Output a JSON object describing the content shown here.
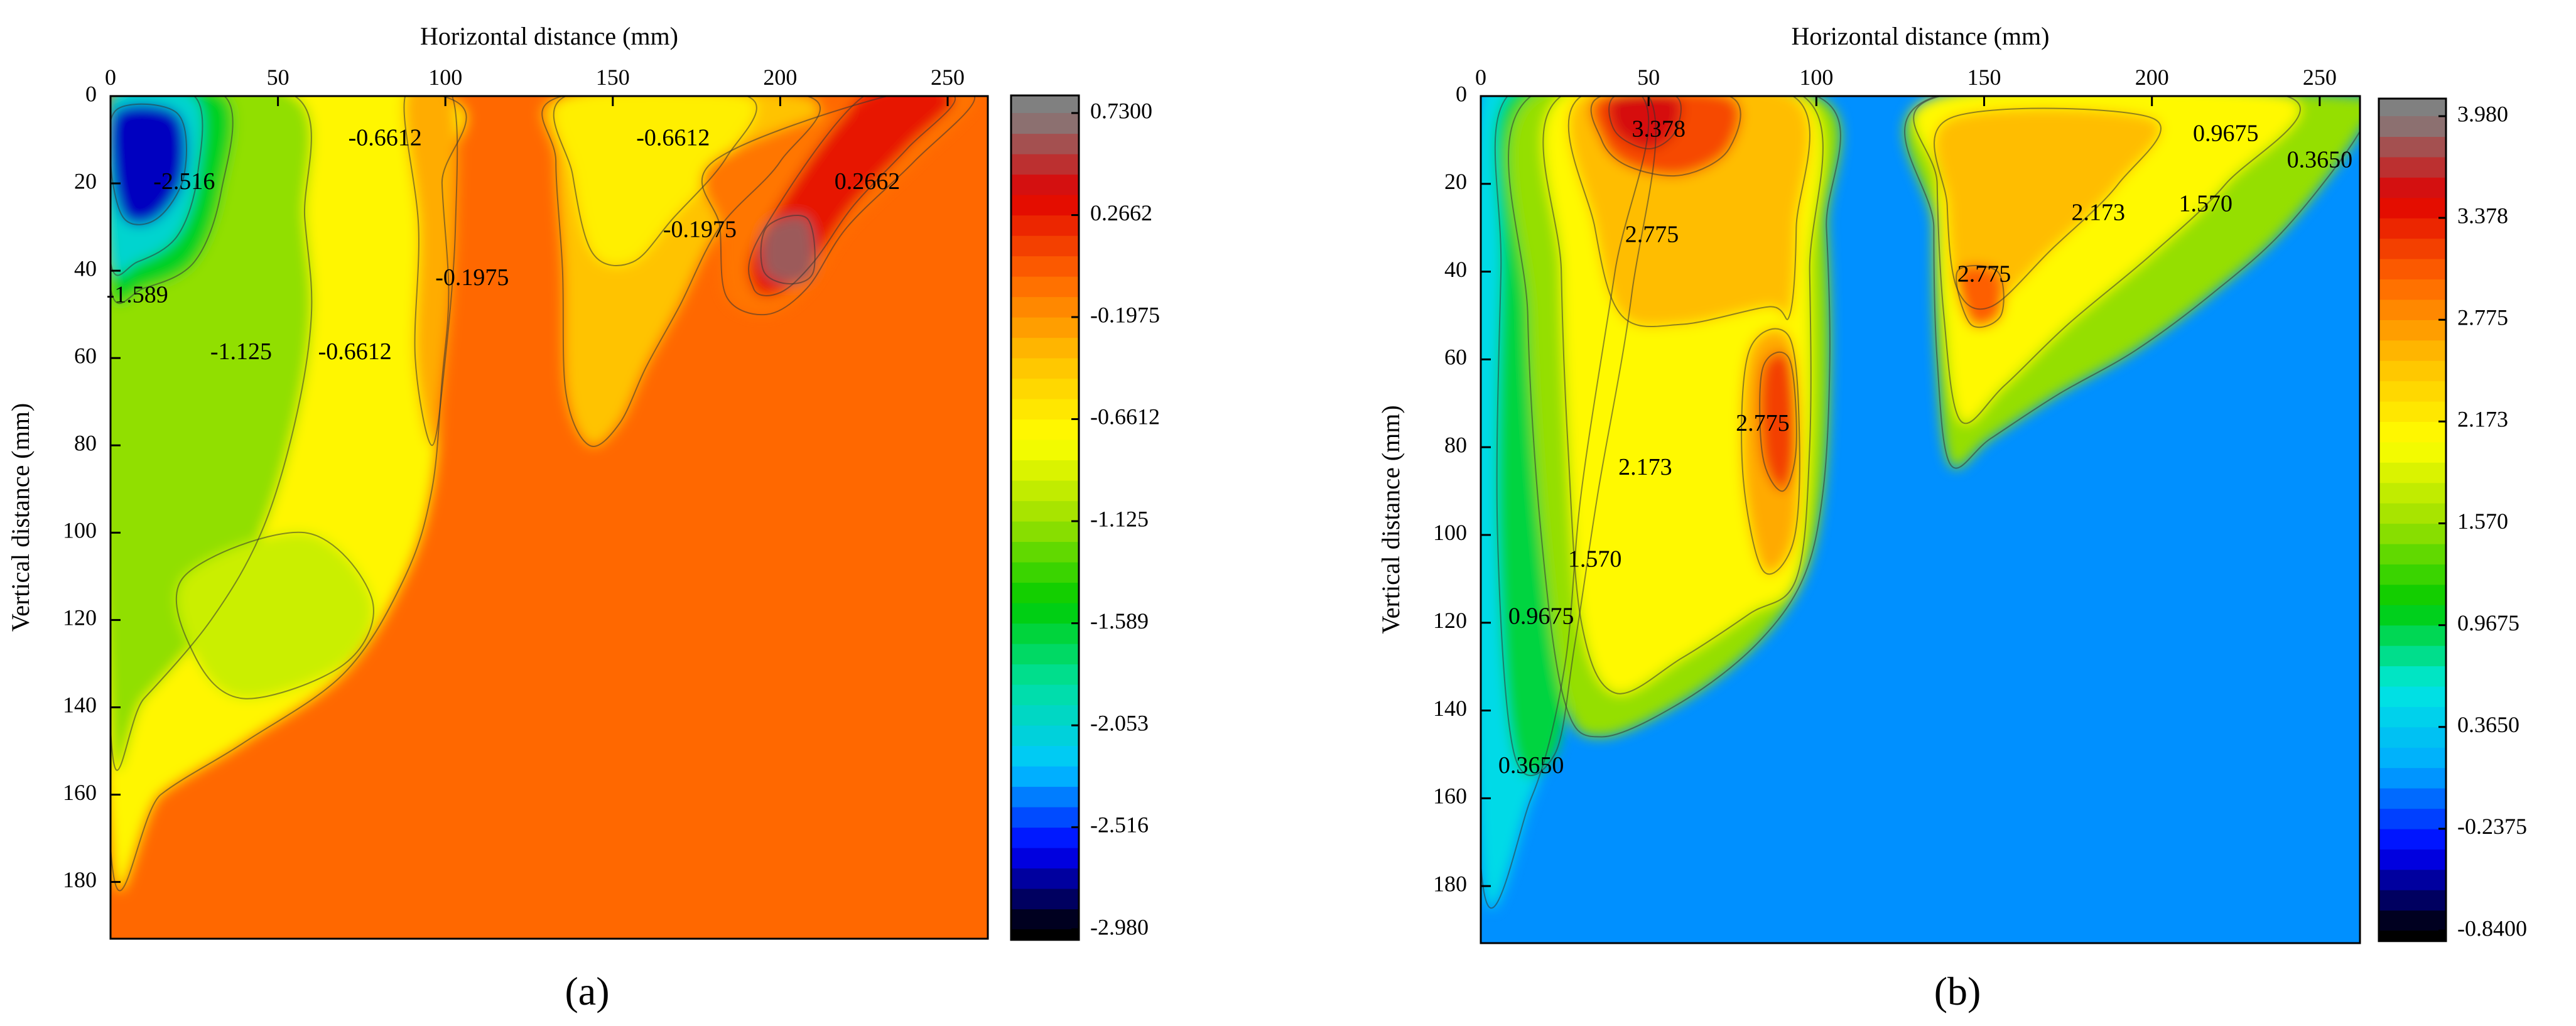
{
  "figure": {
    "panel_labels": [
      "(a)",
      "(b)"
    ]
  },
  "chart_data": [
    {
      "type": "heatmap",
      "panel_label": "(a)",
      "xlabel": "Horizontal distance (mm)",
      "ylabel": "Vertical distance (mm)",
      "x_axis_position": "top",
      "y_axis_inverted": true,
      "xlim": [
        0,
        262
      ],
      "ylim": [
        0,
        193
      ],
      "x_ticks": [
        0,
        50,
        100,
        150,
        200,
        250
      ],
      "y_ticks": [
        0,
        20,
        40,
        60,
        80,
        100,
        120,
        140,
        160,
        180
      ],
      "colorbar": {
        "ticks": [
          0.73,
          0.2662,
          -0.1975,
          -0.6612,
          -1.125,
          -1.589,
          -2.053,
          -2.516,
          -2.98
        ],
        "tick_labels": [
          "0.7300",
          "0.2662",
          "-0.1975",
          "-0.6612",
          "-1.125",
          "-1.589",
          "-2.053",
          "-2.516",
          "-2.980"
        ],
        "min": -2.98,
        "max": 0.73,
        "colormap": [
          "#000000",
          "#0000ff",
          "#00c8ff",
          "#00e0a0",
          "#00cc00",
          "#9be000",
          "#ffff00",
          "#ffc000",
          "#ff6600",
          "#e00000",
          "#808080"
        ]
      },
      "background_value": -0.02,
      "contour_labels": [
        {
          "text": "-2.516",
          "x": 22,
          "y": 20
        },
        {
          "text": "-1.589",
          "x": 8,
          "y": 46
        },
        {
          "text": "-1.125",
          "x": 39,
          "y": 59
        },
        {
          "text": "-0.6612",
          "x": 73,
          "y": 59
        },
        {
          "text": "-0.6612",
          "x": 82,
          "y": 10
        },
        {
          "text": "-0.6612",
          "x": 168,
          "y": 10
        },
        {
          "text": "-0.1975",
          "x": 108,
          "y": 42
        },
        {
          "text": "-0.1975",
          "x": 176,
          "y": 31
        },
        {
          "text": "0.2662",
          "x": 226,
          "y": 20
        }
      ]
    },
    {
      "type": "heatmap",
      "panel_label": "(b)",
      "xlabel": "Horizontal distance (mm)",
      "ylabel": "Vertical distance (mm)",
      "x_axis_position": "top",
      "y_axis_inverted": true,
      "xlim": [
        0,
        262
      ],
      "ylim": [
        0,
        193
      ],
      "x_ticks": [
        0,
        50,
        100,
        150,
        200,
        250
      ],
      "y_ticks": [
        0,
        20,
        40,
        60,
        80,
        100,
        120,
        140,
        160,
        180
      ],
      "colorbar": {
        "ticks": [
          3.98,
          3.378,
          2.775,
          2.173,
          1.57,
          0.9675,
          0.365,
          -0.2375,
          -0.84
        ],
        "tick_labels": [
          "3.980",
          "3.378",
          "2.775",
          "2.173",
          "1.570",
          "0.9675",
          "0.3650",
          "-0.2375",
          "-0.8400"
        ],
        "min": -0.84,
        "max": 3.98,
        "colormap": [
          "#000000",
          "#0000ff",
          "#00aaff",
          "#00e8e0",
          "#00cc00",
          "#9be000",
          "#ffff00",
          "#ffc000",
          "#ff6600",
          "#e00000",
          "#808080"
        ]
      },
      "background_value": 0.05,
      "contour_labels": [
        {
          "text": "3.378",
          "x": 53,
          "y": 8
        },
        {
          "text": "2.775",
          "x": 51,
          "y": 32
        },
        {
          "text": "2.775",
          "x": 84,
          "y": 75
        },
        {
          "text": "2.775",
          "x": 150,
          "y": 41
        },
        {
          "text": "2.173",
          "x": 49,
          "y": 85
        },
        {
          "text": "2.173",
          "x": 184,
          "y": 27
        },
        {
          "text": "1.570",
          "x": 34,
          "y": 106
        },
        {
          "text": "1.570",
          "x": 216,
          "y": 25
        },
        {
          "text": "0.9675",
          "x": 18,
          "y": 119
        },
        {
          "text": "0.9675",
          "x": 222,
          "y": 9
        },
        {
          "text": "0.3650",
          "x": 15,
          "y": 153
        },
        {
          "text": "0.3650",
          "x": 250,
          "y": 15
        }
      ]
    }
  ]
}
